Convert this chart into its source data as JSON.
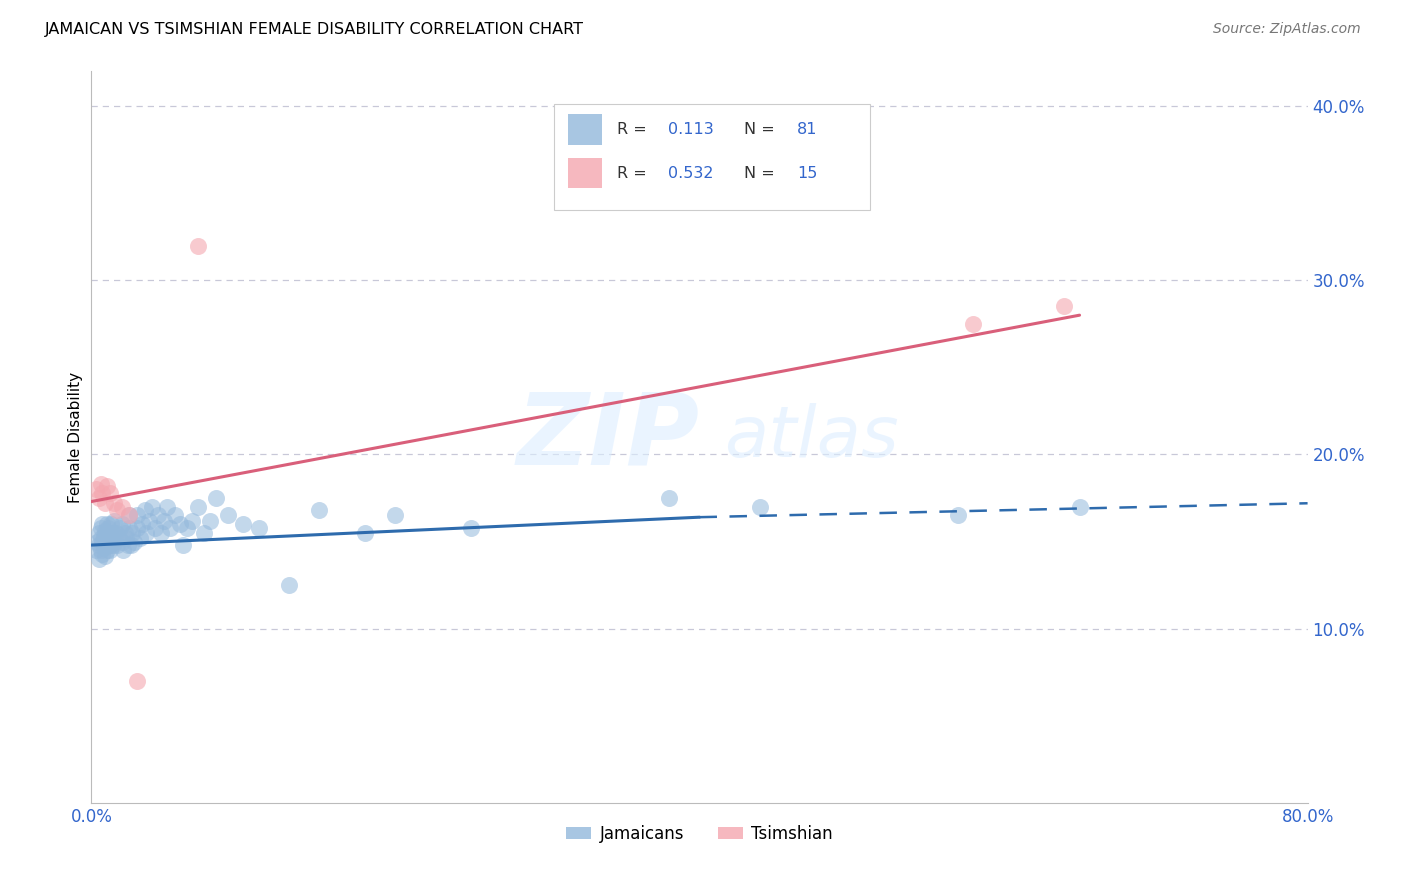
{
  "title": "JAMAICAN VS TSIMSHIAN FEMALE DISABILITY CORRELATION CHART",
  "source": "Source: ZipAtlas.com",
  "ylabel": "Female Disability",
  "xlim": [
    0.0,
    0.8
  ],
  "ylim": [
    0.0,
    0.42
  ],
  "blue_color": "#93B8DB",
  "pink_color": "#F4A7B0",
  "blue_line_color": "#2E6BAD",
  "pink_line_color": "#D95F7A",
  "watermark_zip": "ZIP",
  "watermark_atlas": "atlas",
  "background_color": "#FFFFFF",
  "jam_x": [
    0.003,
    0.004,
    0.005,
    0.005,
    0.005,
    0.006,
    0.006,
    0.006,
    0.007,
    0.007,
    0.007,
    0.008,
    0.008,
    0.009,
    0.009,
    0.009,
    0.01,
    0.01,
    0.01,
    0.01,
    0.011,
    0.011,
    0.012,
    0.012,
    0.012,
    0.013,
    0.013,
    0.014,
    0.014,
    0.015,
    0.015,
    0.016,
    0.017,
    0.018,
    0.019,
    0.02,
    0.02,
    0.021,
    0.022,
    0.023,
    0.024,
    0.025,
    0.025,
    0.026,
    0.027,
    0.028,
    0.03,
    0.03,
    0.032,
    0.033,
    0.035,
    0.036,
    0.038,
    0.04,
    0.042,
    0.044,
    0.046,
    0.048,
    0.05,
    0.052,
    0.055,
    0.058,
    0.06,
    0.063,
    0.066,
    0.07,
    0.074,
    0.078,
    0.082,
    0.09,
    0.1,
    0.11,
    0.13,
    0.15,
    0.18,
    0.2,
    0.25,
    0.38,
    0.44,
    0.57,
    0.65
  ],
  "jam_y": [
    0.145,
    0.15,
    0.148,
    0.155,
    0.14,
    0.152,
    0.145,
    0.158,
    0.143,
    0.15,
    0.16,
    0.148,
    0.153,
    0.142,
    0.156,
    0.147,
    0.148,
    0.153,
    0.145,
    0.16,
    0.15,
    0.158,
    0.145,
    0.155,
    0.148,
    0.152,
    0.16,
    0.148,
    0.155,
    0.15,
    0.162,
    0.155,
    0.148,
    0.152,
    0.158,
    0.15,
    0.16,
    0.145,
    0.155,
    0.152,
    0.148,
    0.158,
    0.165,
    0.148,
    0.155,
    0.15,
    0.165,
    0.158,
    0.152,
    0.16,
    0.168,
    0.155,
    0.162,
    0.17,
    0.158,
    0.165,
    0.155,
    0.162,
    0.17,
    0.158,
    0.165,
    0.16,
    0.148,
    0.158,
    0.162,
    0.17,
    0.155,
    0.162,
    0.175,
    0.165,
    0.16,
    0.158,
    0.125,
    0.168,
    0.155,
    0.165,
    0.158,
    0.175,
    0.17,
    0.165,
    0.17
  ],
  "tsi_x": [
    0.003,
    0.005,
    0.006,
    0.007,
    0.009,
    0.01,
    0.012,
    0.015,
    0.017,
    0.02,
    0.025,
    0.03,
    0.07,
    0.58,
    0.64
  ],
  "tsi_y": [
    0.18,
    0.175,
    0.183,
    0.178,
    0.172,
    0.182,
    0.178,
    0.172,
    0.168,
    0.17,
    0.165,
    0.07,
    0.32,
    0.275,
    0.285
  ],
  "blue_line_x0": 0.0,
  "blue_line_x_solid_end": 0.4,
  "blue_line_x1": 0.8,
  "blue_line_y0": 0.148,
  "blue_line_y_solid_end": 0.164,
  "blue_line_y1": 0.172,
  "pink_line_x0": 0.0,
  "pink_line_x1": 0.65,
  "pink_line_y0": 0.173,
  "pink_line_y1": 0.28
}
